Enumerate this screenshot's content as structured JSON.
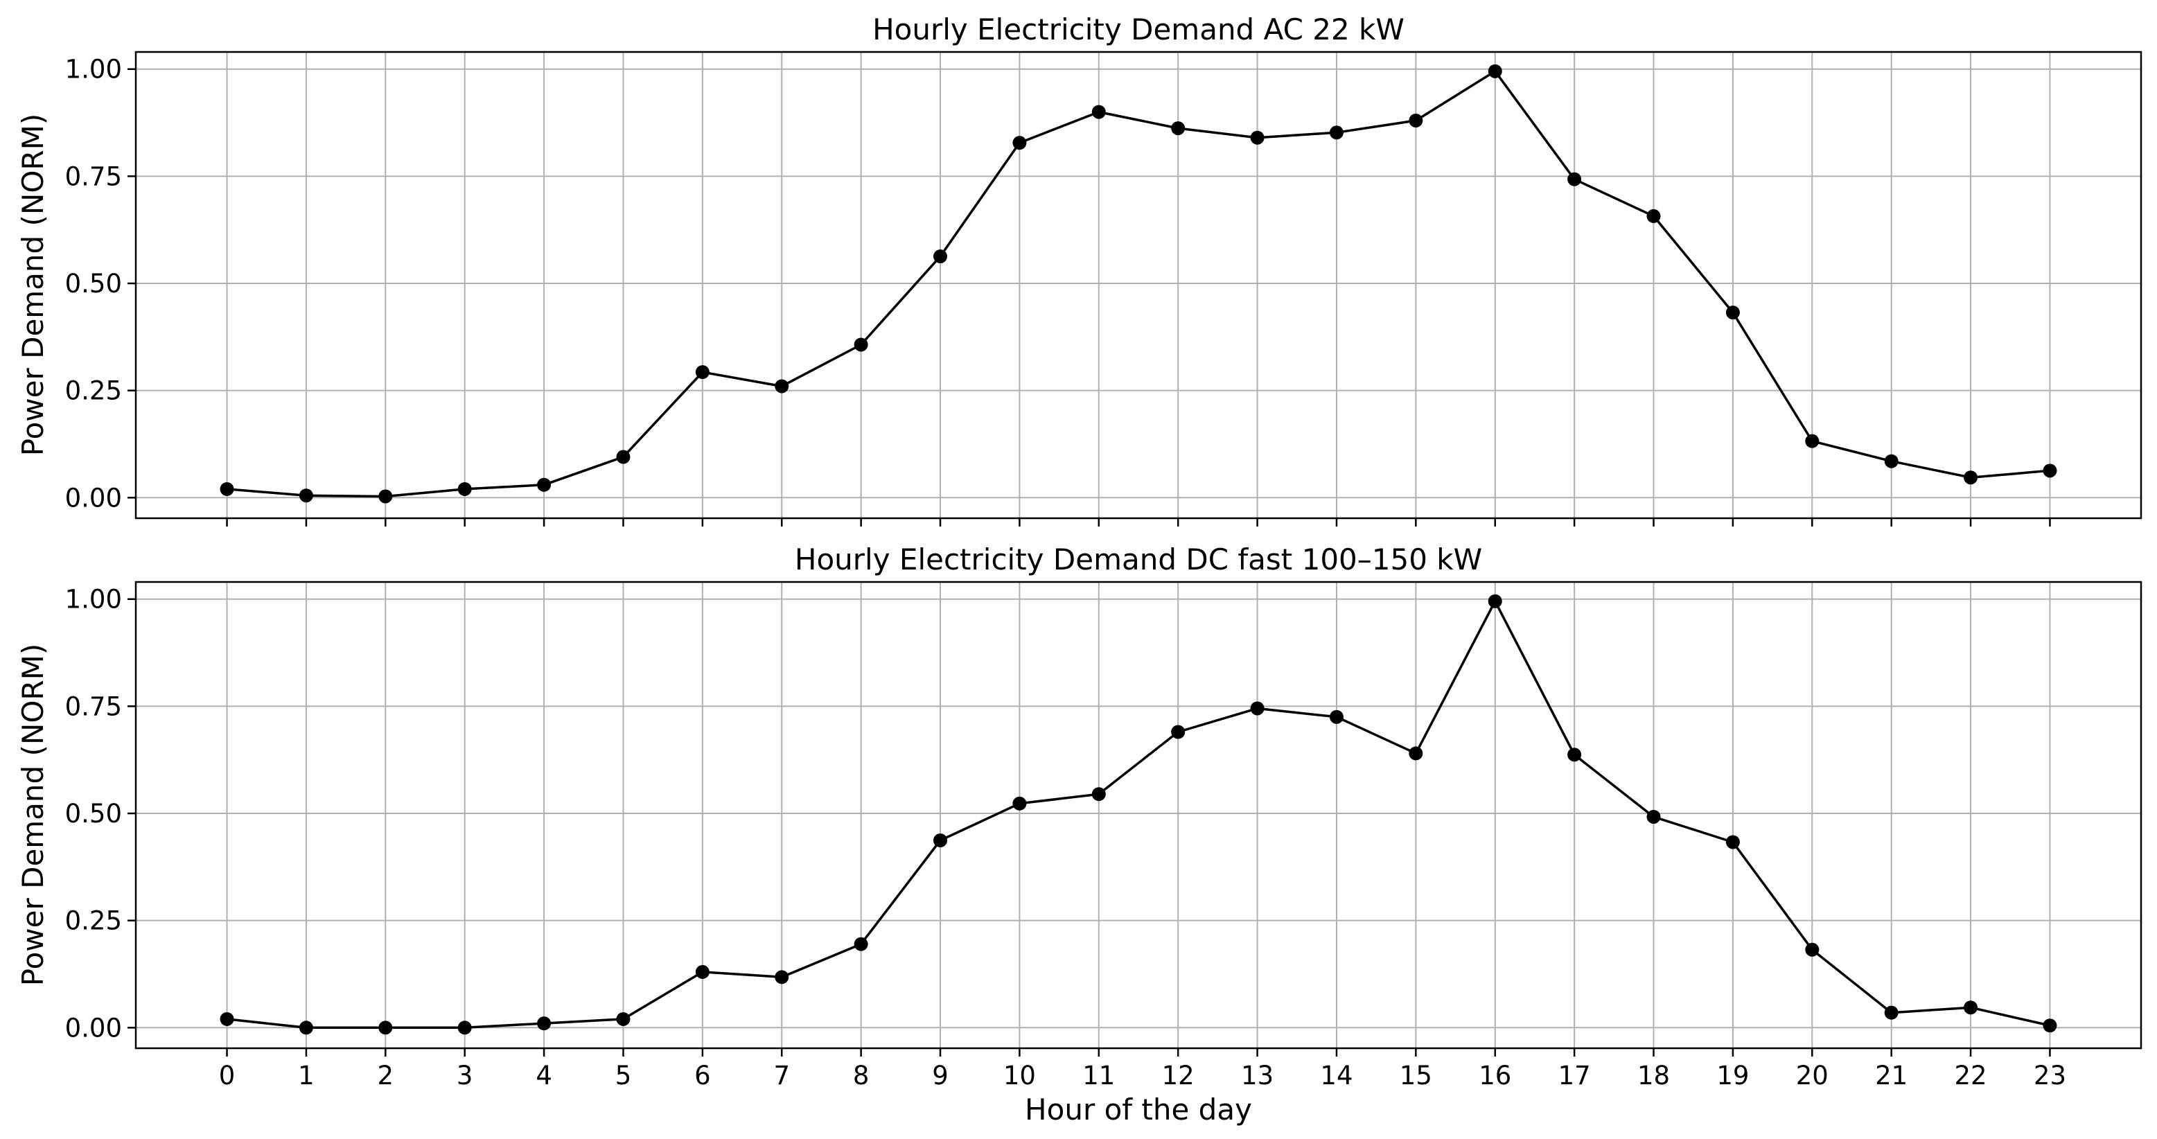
{
  "colors": {
    "line": "#000000",
    "marker": "#000000",
    "grid": "#b0b0b0",
    "frame": "#000000",
    "background": "#ffffff"
  },
  "chart_data": [
    {
      "type": "line",
      "title": "Hourly Electricity Demand AC 22 kW",
      "xlabel": "",
      "ylabel": "Power Demand (NORM)",
      "x": [
        0,
        1,
        2,
        3,
        4,
        5,
        6,
        7,
        8,
        9,
        10,
        11,
        12,
        13,
        14,
        15,
        16,
        17,
        18,
        19,
        20,
        21,
        22,
        23
      ],
      "xlim": [
        -1.15,
        24.15
      ],
      "ylim": [
        -0.048,
        1.04
      ],
      "yticks": [
        0,
        0.25,
        0.5,
        0.75,
        1.0
      ],
      "ytick_labels": [
        "0.00",
        "0.25",
        "0.50",
        "0.75",
        "1.00"
      ],
      "xtick_labels": [],
      "grid": true,
      "marker": "circle",
      "values": [
        0.02,
        0.005,
        0.003,
        0.02,
        0.03,
        0.095,
        0.293,
        0.26,
        0.357,
        0.563,
        0.828,
        0.9,
        0.862,
        0.84,
        0.852,
        0.88,
        0.995,
        0.743,
        0.657,
        0.432,
        0.132,
        0.085,
        0.047,
        0.063
      ]
    },
    {
      "type": "line",
      "title": "Hourly Electricity Demand DC fast 100–150 kW",
      "xlabel": "Hour of the day",
      "ylabel": "Power Demand (NORM)",
      "x": [
        0,
        1,
        2,
        3,
        4,
        5,
        6,
        7,
        8,
        9,
        10,
        11,
        12,
        13,
        14,
        15,
        16,
        17,
        18,
        19,
        20,
        21,
        22,
        23
      ],
      "xlim": [
        -1.15,
        24.15
      ],
      "ylim": [
        -0.048,
        1.04
      ],
      "yticks": [
        0,
        0.25,
        0.5,
        0.75,
        1.0
      ],
      "ytick_labels": [
        "0.00",
        "0.25",
        "0.50",
        "0.75",
        "1.00"
      ],
      "xtick_labels": [
        "0",
        "1",
        "2",
        "3",
        "4",
        "5",
        "6",
        "7",
        "8",
        "9",
        "10",
        "11",
        "12",
        "13",
        "14",
        "15",
        "16",
        "17",
        "18",
        "19",
        "20",
        "21",
        "22",
        "23"
      ],
      "grid": true,
      "marker": "circle",
      "values": [
        0.02,
        0.0,
        0.0,
        0.0,
        0.01,
        0.02,
        0.13,
        0.118,
        0.195,
        0.437,
        0.523,
        0.545,
        0.69,
        0.745,
        0.725,
        0.64,
        0.995,
        0.637,
        0.492,
        0.433,
        0.182,
        0.035,
        0.047,
        0.005
      ]
    }
  ]
}
